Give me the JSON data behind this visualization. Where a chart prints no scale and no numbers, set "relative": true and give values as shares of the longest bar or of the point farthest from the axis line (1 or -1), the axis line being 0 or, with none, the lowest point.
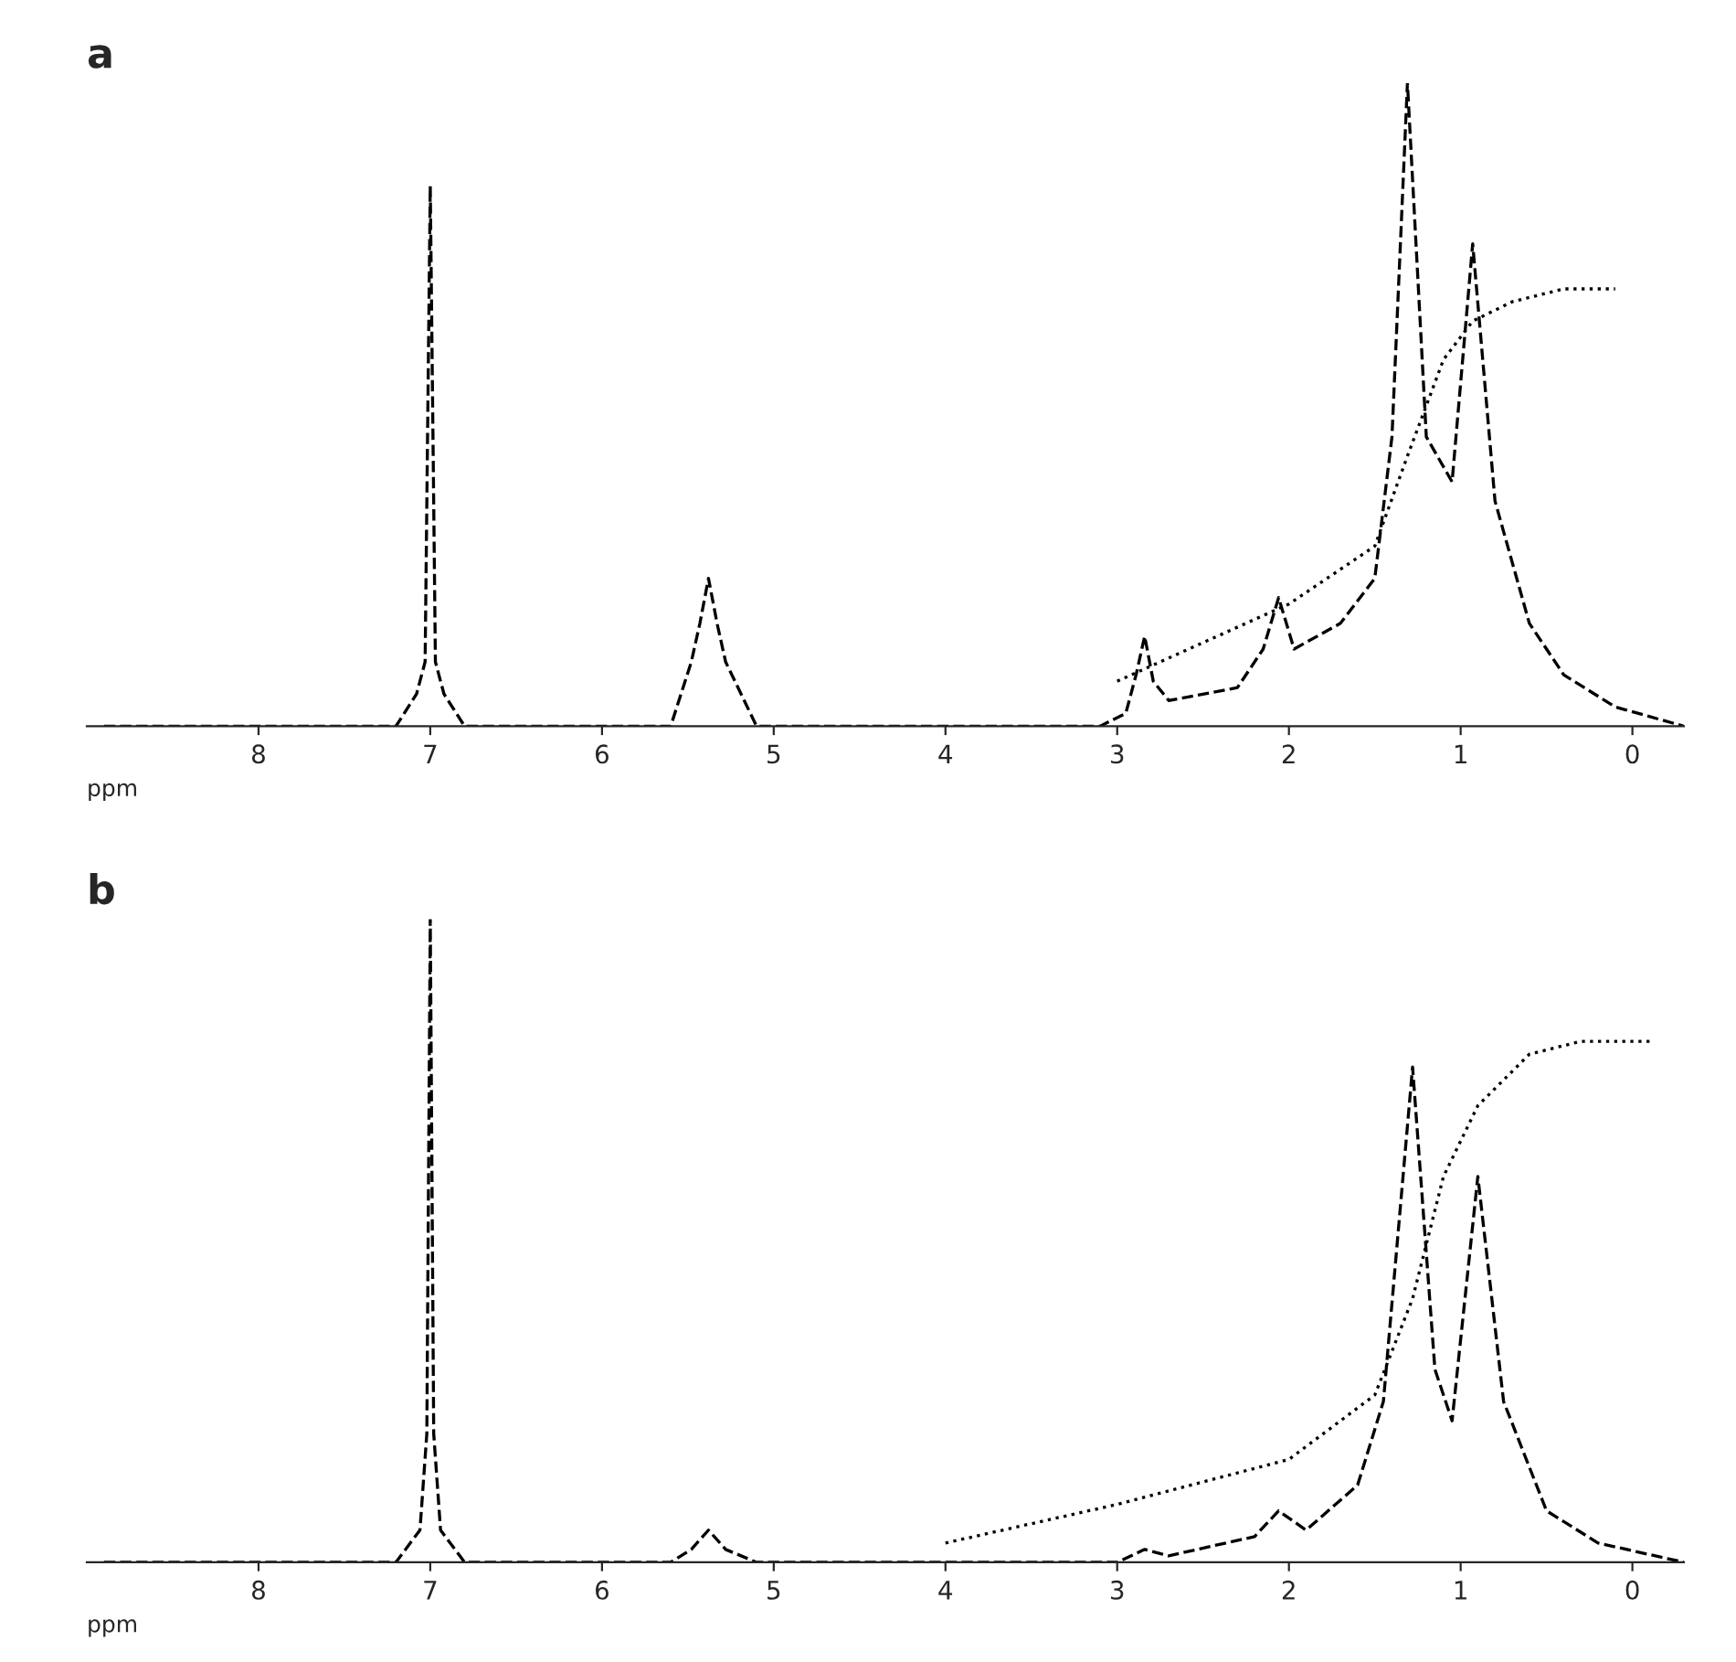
{
  "chart_data": [
    {
      "type": "line",
      "title": "a",
      "xlabel": "ppm",
      "relative": true,
      "xlim": [
        9,
        -0.3
      ],
      "xticks": [
        8,
        7,
        6,
        5,
        4,
        3,
        2,
        1,
        0
      ],
      "grid": false,
      "marker": "none",
      "series": [
        {
          "color": "#000000",
          "line_style": "dashed",
          "x": [
            8.9,
            7.2,
            7.08,
            7.03,
            7.0,
            6.97,
            6.92,
            6.8,
            5.6,
            5.48,
            5.43,
            5.38,
            5.33,
            5.28,
            5.1,
            3.1,
            2.95,
            2.89,
            2.84,
            2.79,
            2.7,
            2.3,
            2.15,
            2.06,
            1.97,
            1.7,
            1.5,
            1.4,
            1.31,
            1.2,
            1.05,
            0.93,
            0.8,
            0.6,
            0.4,
            0.1,
            -0.3
          ],
          "values": [
            0,
            0,
            0.05,
            0.1,
            0.84,
            0.1,
            0.05,
            0,
            0,
            0.1,
            0.16,
            0.23,
            0.16,
            0.1,
            0,
            0,
            0.02,
            0.08,
            0.14,
            0.07,
            0.04,
            0.06,
            0.12,
            0.2,
            0.12,
            0.16,
            0.23,
            0.45,
            1.0,
            0.45,
            0.38,
            0.75,
            0.35,
            0.16,
            0.08,
            0.03,
            0
          ]
        },
        {
          "color": "#000000",
          "line_style": "dotted",
          "x": [
            3.0,
            2.5,
            2.0,
            1.5,
            1.31,
            1.1,
            0.93,
            0.7,
            0.4,
            0.1
          ],
          "values": [
            0.07,
            0.13,
            0.19,
            0.28,
            0.42,
            0.57,
            0.63,
            0.66,
            0.68,
            0.68
          ]
        }
      ]
    },
    {
      "type": "line",
      "title": "b",
      "xlabel": "ppm",
      "relative": true,
      "xlim": [
        9,
        -0.3
      ],
      "xticks": [
        8,
        7,
        6,
        5,
        4,
        3,
        2,
        1,
        0
      ],
      "grid": false,
      "marker": "none",
      "series": [
        {
          "color": "#000000",
          "line_style": "dashed",
          "x": [
            8.9,
            7.2,
            7.06,
            7.02,
            7.0,
            6.98,
            6.94,
            6.8,
            5.6,
            5.48,
            5.38,
            5.28,
            5.1,
            3.0,
            2.84,
            2.7,
            2.2,
            2.06,
            1.9,
            1.6,
            1.45,
            1.28,
            1.15,
            1.05,
            0.9,
            0.75,
            0.5,
            0.2,
            -0.3
          ],
          "values": [
            0,
            0,
            0.05,
            0.2,
            1.0,
            0.2,
            0.05,
            0,
            0,
            0.02,
            0.05,
            0.02,
            0,
            0,
            0.02,
            0.01,
            0.04,
            0.08,
            0.05,
            0.12,
            0.25,
            0.77,
            0.3,
            0.22,
            0.6,
            0.25,
            0.08,
            0.03,
            0
          ]
        },
        {
          "color": "#000000",
          "line_style": "dotted",
          "x": [
            4.0,
            3.0,
            2.0,
            1.5,
            1.28,
            1.1,
            0.9,
            0.6,
            0.3,
            -0.1
          ],
          "values": [
            0.03,
            0.09,
            0.16,
            0.26,
            0.41,
            0.6,
            0.71,
            0.79,
            0.81,
            0.81
          ]
        }
      ]
    }
  ]
}
